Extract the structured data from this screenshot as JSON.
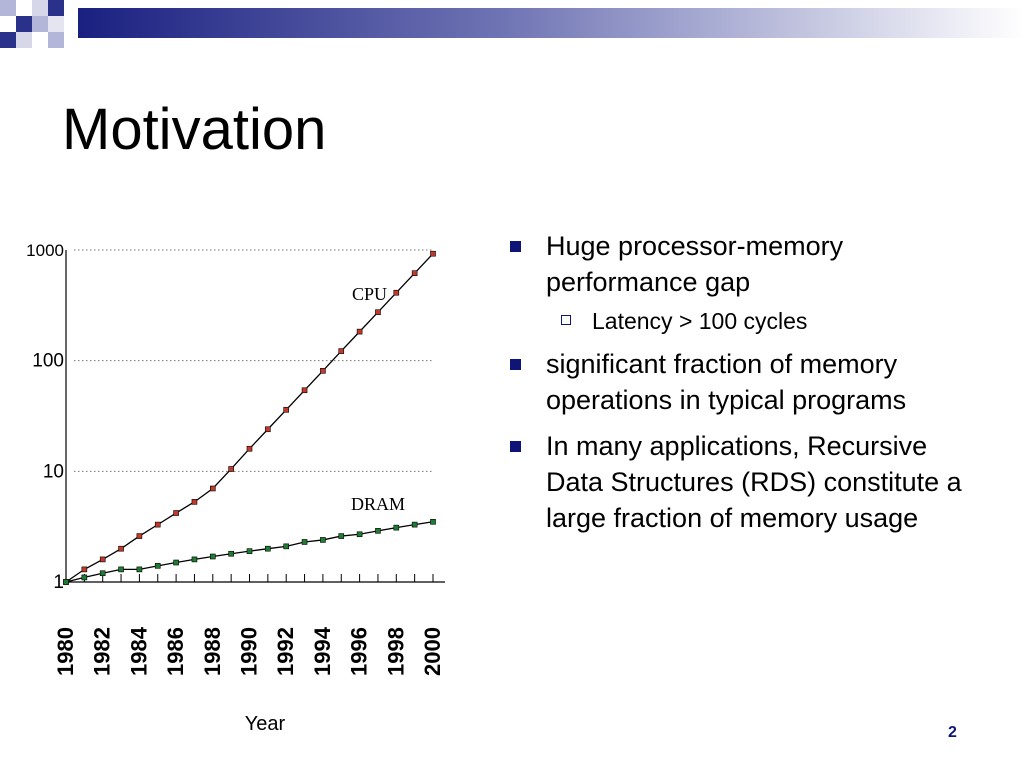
{
  "slide": {
    "title": "Motivation",
    "page_number": "2",
    "accent_color": "#0e1577",
    "bullets": [
      {
        "text": "Huge processor-memory performance gap",
        "sub": [
          "Latency > 100 cycles"
        ]
      },
      {
        "text": "significant fraction of memory operations in typical programs"
      },
      {
        "text": "In many applications, Recursive Data Structures (RDS) constitute a large fraction of memory usage"
      }
    ]
  },
  "chart_data": {
    "type": "line",
    "title": "",
    "xlabel": "Year",
    "ylabel": "",
    "y_scale": "log",
    "ylim": [
      1,
      1000
    ],
    "xlim": [
      1980,
      2000
    ],
    "y_ticks": [
      "1",
      "10",
      "100",
      "1000"
    ],
    "x_ticks": [
      "1980",
      "1982",
      "1984",
      "1986",
      "1988",
      "1990",
      "1992",
      "1994",
      "1996",
      "1998",
      "2000"
    ],
    "grid": "horizontal dotted",
    "x": [
      1980,
      1981,
      1982,
      1983,
      1984,
      1985,
      1986,
      1987,
      1988,
      1989,
      1990,
      1991,
      1992,
      1993,
      1994,
      1995,
      1996,
      1997,
      1998,
      1999,
      2000
    ],
    "series": [
      {
        "name": "CPU",
        "color": "#c0392b",
        "values": [
          1,
          1.3,
          1.6,
          2.0,
          2.6,
          3.3,
          4.2,
          5.3,
          7.0,
          10.5,
          16,
          24,
          36,
          54,
          81,
          122,
          183,
          274,
          411,
          617,
          926
        ]
      },
      {
        "name": "DRAM",
        "color": "#1e7d32",
        "values": [
          1,
          1.1,
          1.2,
          1.3,
          1.3,
          1.4,
          1.5,
          1.6,
          1.7,
          1.8,
          1.9,
          2.0,
          2.1,
          2.3,
          2.4,
          2.6,
          2.7,
          2.9,
          3.1,
          3.3,
          3.5
        ]
      }
    ]
  }
}
